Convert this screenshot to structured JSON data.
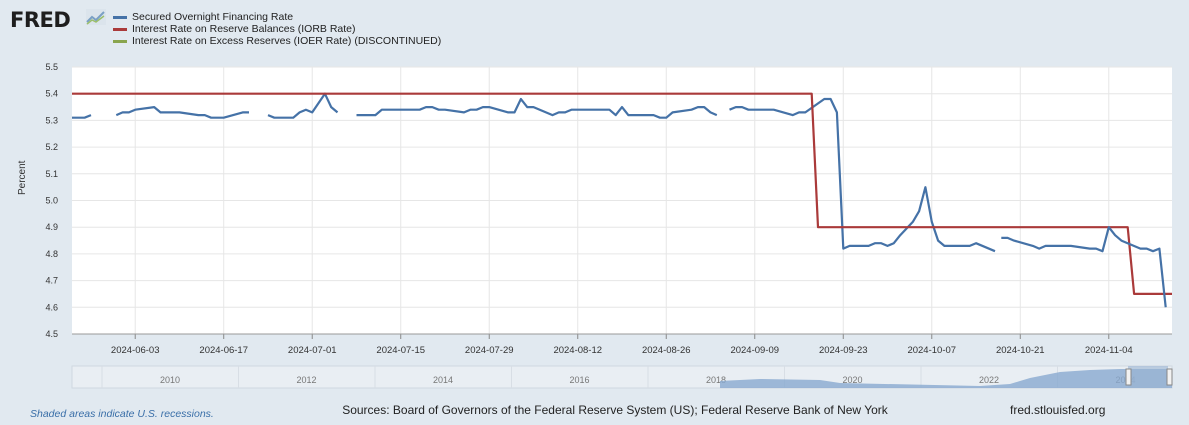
{
  "brand": {
    "logo_text": "FRED",
    "logo_icon": "chart-line-icon"
  },
  "chart_data": {
    "type": "line",
    "ylabel": "Percent",
    "ylim": [
      4.5,
      5.5
    ],
    "yticks": [
      "4.5",
      "4.6",
      "4.7",
      "4.8",
      "4.9",
      "5.0",
      "5.1",
      "5.2",
      "5.3",
      "5.4",
      "5.5"
    ],
    "xlim": [
      "2024-05-24",
      "2024-11-14"
    ],
    "xticks": [
      "2024-06-03",
      "2024-06-17",
      "2024-07-01",
      "2024-07-15",
      "2024-07-29",
      "2024-08-12",
      "2024-08-26",
      "2024-09-09",
      "2024-09-23",
      "2024-10-07",
      "2024-10-21",
      "2024-11-04"
    ],
    "grid": true,
    "legend_position": "top-left",
    "series": [
      {
        "name": "Secured Overnight Financing Rate",
        "color": "#4572a7",
        "segments": [
          [
            [
              "2024-05-24",
              5.31
            ],
            [
              "2024-05-26",
              5.31
            ],
            [
              "2024-05-27",
              5.32
            ]
          ],
          [
            [
              "2024-05-31",
              5.32
            ],
            [
              "2024-06-01",
              5.33
            ],
            [
              "2024-06-02",
              5.33
            ],
            [
              "2024-06-03",
              5.34
            ],
            [
              "2024-06-06",
              5.35
            ],
            [
              "2024-06-07",
              5.33
            ],
            [
              "2024-06-10",
              5.33
            ],
            [
              "2024-06-13",
              5.32
            ],
            [
              "2024-06-14",
              5.32
            ],
            [
              "2024-06-15",
              5.31
            ],
            [
              "2024-06-17",
              5.31
            ],
            [
              "2024-06-20",
              5.33
            ],
            [
              "2024-06-21",
              5.33
            ]
          ],
          [
            [
              "2024-06-24",
              5.32
            ],
            [
              "2024-06-25",
              5.31
            ],
            [
              "2024-06-28",
              5.31
            ],
            [
              "2024-06-29",
              5.33
            ],
            [
              "2024-06-30",
              5.34
            ],
            [
              "2024-07-01",
              5.33
            ],
            [
              "2024-07-03",
              5.4
            ],
            [
              "2024-07-04",
              5.35
            ],
            [
              "2024-07-05",
              5.33
            ]
          ],
          [
            [
              "2024-07-08",
              5.32
            ],
            [
              "2024-07-11",
              5.32
            ],
            [
              "2024-07-12",
              5.34
            ],
            [
              "2024-07-18",
              5.34
            ],
            [
              "2024-07-19",
              5.35
            ],
            [
              "2024-07-20",
              5.35
            ],
            [
              "2024-07-21",
              5.34
            ],
            [
              "2024-07-22",
              5.34
            ],
            [
              "2024-07-25",
              5.33
            ],
            [
              "2024-07-26",
              5.34
            ],
            [
              "2024-07-27",
              5.34
            ],
            [
              "2024-07-28",
              5.35
            ],
            [
              "2024-07-29",
              5.35
            ],
            [
              "2024-08-01",
              5.33
            ],
            [
              "2024-08-02",
              5.33
            ],
            [
              "2024-08-03",
              5.38
            ],
            [
              "2024-08-04",
              5.35
            ],
            [
              "2024-08-05",
              5.35
            ],
            [
              "2024-08-08",
              5.32
            ],
            [
              "2024-08-09",
              5.33
            ],
            [
              "2024-08-10",
              5.33
            ],
            [
              "2024-08-11",
              5.34
            ],
            [
              "2024-08-17",
              5.34
            ],
            [
              "2024-08-18",
              5.32
            ],
            [
              "2024-08-19",
              5.35
            ],
            [
              "2024-08-20",
              5.32
            ],
            [
              "2024-08-24",
              5.32
            ],
            [
              "2024-08-25",
              5.31
            ],
            [
              "2024-08-26",
              5.31
            ],
            [
              "2024-08-27",
              5.33
            ],
            [
              "2024-08-30",
              5.34
            ],
            [
              "2024-08-31",
              5.35
            ],
            [
              "2024-09-01",
              5.35
            ],
            [
              "2024-09-02",
              5.33
            ],
            [
              "2024-09-03",
              5.32
            ]
          ],
          [
            [
              "2024-09-05",
              5.34
            ],
            [
              "2024-09-06",
              5.35
            ],
            [
              "2024-09-07",
              5.35
            ],
            [
              "2024-09-08",
              5.34
            ],
            [
              "2024-09-12",
              5.34
            ],
            [
              "2024-09-15",
              5.32
            ],
            [
              "2024-09-16",
              5.33
            ],
            [
              "2024-09-17",
              5.33
            ],
            [
              "2024-09-20",
              5.38
            ],
            [
              "2024-09-21",
              5.38
            ],
            [
              "2024-09-22",
              5.33
            ],
            [
              "2024-09-23",
              4.82
            ],
            [
              "2024-09-24",
              4.83
            ],
            [
              "2024-09-27",
              4.83
            ],
            [
              "2024-09-28",
              4.84
            ],
            [
              "2024-09-29",
              4.84
            ],
            [
              "2024-09-30",
              4.83
            ],
            [
              "2024-10-01",
              4.84
            ],
            [
              "2024-10-02",
              4.87
            ],
            [
              "2024-10-04",
              4.92
            ],
            [
              "2024-10-05",
              4.96
            ],
            [
              "2024-10-06",
              5.05
            ],
            [
              "2024-10-07",
              4.92
            ],
            [
              "2024-10-08",
              4.85
            ],
            [
              "2024-10-09",
              4.83
            ],
            [
              "2024-10-12",
              4.83
            ],
            [
              "2024-10-13",
              4.83
            ],
            [
              "2024-10-14",
              4.84
            ],
            [
              "2024-10-17",
              4.81
            ]
          ]
        ]
      },
      {
        "name": "Interest Rate on Reserve Balances (IORB Rate)",
        "color": "#aa3a3a",
        "segments": [
          [
            [
              "2024-05-24",
              5.4
            ],
            [
              "2024-09-18",
              5.4
            ],
            [
              "2024-09-19",
              4.9
            ],
            [
              "2024-11-07",
              4.9
            ],
            [
              "2024-11-08",
              4.65
            ],
            [
              "2024-11-14",
              4.65
            ]
          ]
        ]
      },
      {
        "name": "Interest Rate on Excess Reserves (IOER Rate) (DISCONTINUED)",
        "color": "#89a54e",
        "segments": []
      }
    ],
    "extra_sofr_segments": [
      [
        [
          "2024-10-18",
          4.86
        ],
        [
          "2024-10-19",
          4.86
        ],
        [
          "2024-10-20",
          4.85
        ],
        [
          "2024-10-23",
          4.83
        ],
        [
          "2024-10-24",
          4.82
        ],
        [
          "2024-10-25",
          4.83
        ],
        [
          "2024-10-26",
          4.83
        ],
        [
          "2024-10-29",
          4.83
        ],
        [
          "2024-11-01",
          4.82
        ],
        [
          "2024-11-02",
          4.82
        ],
        [
          "2024-11-03",
          4.81
        ],
        [
          "2024-11-04",
          4.9
        ],
        [
          "2024-11-05",
          4.87
        ],
        [
          "2024-11-06",
          4.85
        ],
        [
          "2024-11-09",
          4.82
        ],
        [
          "2024-11-10",
          4.82
        ],
        [
          "2024-11-11",
          4.81
        ],
        [
          "2024-11-12",
          4.82
        ],
        [
          "2024-11-13",
          4.6
        ]
      ]
    ]
  },
  "navigator": {
    "year_labels": [
      "2010",
      "2012",
      "2014",
      "2016",
      "2018",
      "2020",
      "2022",
      "2024"
    ]
  },
  "footer": {
    "recession_note": "Shaded areas indicate U.S. recessions.",
    "sources": "Sources: Board of Governors of the Federal Reserve System (US); Federal Reserve Bank of New York",
    "site": "fred.stlouisfed.org"
  }
}
